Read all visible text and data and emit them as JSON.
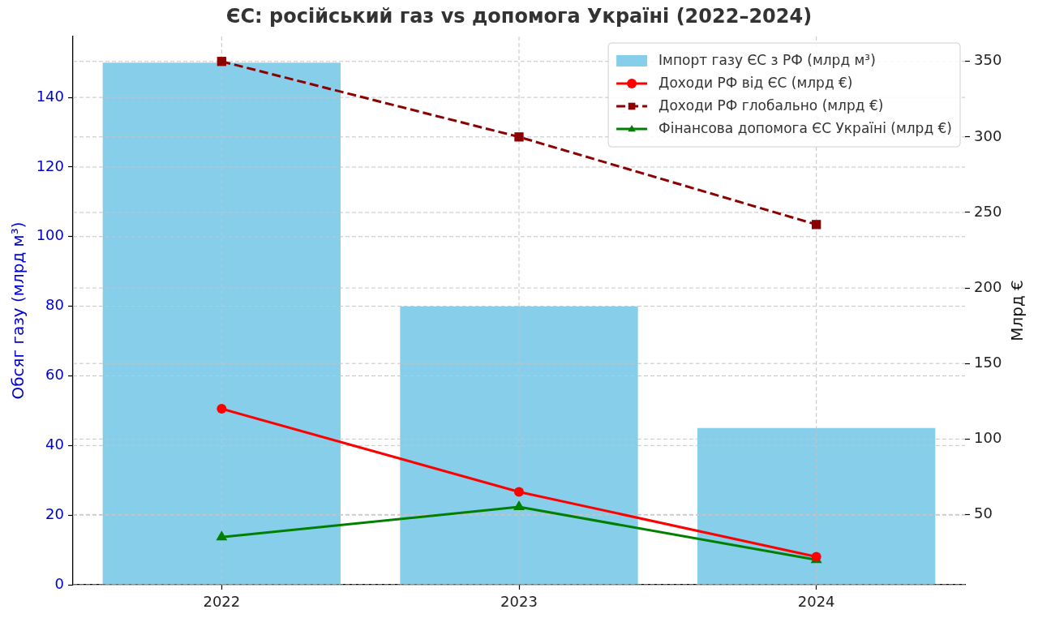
{
  "chart_data": {
    "type": "bar",
    "title": "ЄС: російський газ vs допомога Україні (2022–2024)",
    "ylabel": "Обсяг газу (млрд м³)",
    "y2label": "Млрд €",
    "categories": [
      "2022",
      "2023",
      "2024"
    ],
    "series": [
      {
        "name": "Імпорт газу ЄС з РФ (млрд м³)",
        "color": "#87ceeb",
        "values": [
          150,
          80,
          45
        ]
      },
      {
        "name": "Доходи РФ від ЄС (млрд €)",
        "type": "line",
        "axis": "y2",
        "color": "#ff0000",
        "marker": "circle",
        "line_style": "solid",
        "values": [
          120,
          65,
          22
        ]
      },
      {
        "name": "Доходи РФ глобально (млрд €)",
        "type": "line",
        "axis": "y2",
        "color": "#8b0000",
        "marker": "square",
        "line_style": "dashed",
        "values": [
          350,
          300,
          242
        ]
      },
      {
        "name": "Фінансова допомога ЄС Україні (млрд €)",
        "type": "line",
        "axis": "y2",
        "color": "#008000",
        "marker": "triangle",
        "line_style": "solid",
        "values": [
          35,
          55,
          20
        ]
      }
    ],
    "ylim": [
      0,
      157.5
    ],
    "yticks": [
      0,
      20,
      40,
      60,
      80,
      100,
      120,
      140
    ],
    "y2lim": [
      3.5,
      366.5
    ],
    "y2ticks": [
      50,
      100,
      150,
      200,
      250,
      300,
      350
    ],
    "grid": true,
    "legend": "top right"
  }
}
